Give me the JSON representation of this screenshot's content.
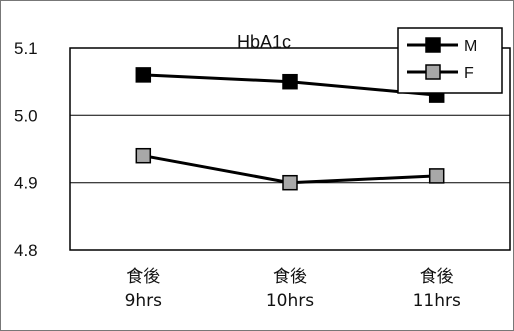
{
  "chart_data": {
    "type": "line",
    "title": "HbA1c",
    "xlabel": "",
    "ylabel": "",
    "categories": [
      [
        "食後",
        "9hrs"
      ],
      [
        "食後",
        "10hrs"
      ],
      [
        "食後",
        "11hrs"
      ]
    ],
    "series": [
      {
        "name": "M",
        "values": [
          5.06,
          5.05,
          5.03
        ],
        "line_color": "#000000",
        "marker_color": "#000000",
        "marker": "square"
      },
      {
        "name": "F",
        "values": [
          4.94,
          4.9,
          4.91
        ],
        "line_color": "#000000",
        "marker_color": "#a8a8a8",
        "marker": "square"
      }
    ],
    "ylim": [
      4.8,
      5.1
    ],
    "y_ticks": [
      "5.1",
      "5.0",
      "4.9",
      "4.8"
    ],
    "grid": true,
    "legend": "top-right"
  }
}
